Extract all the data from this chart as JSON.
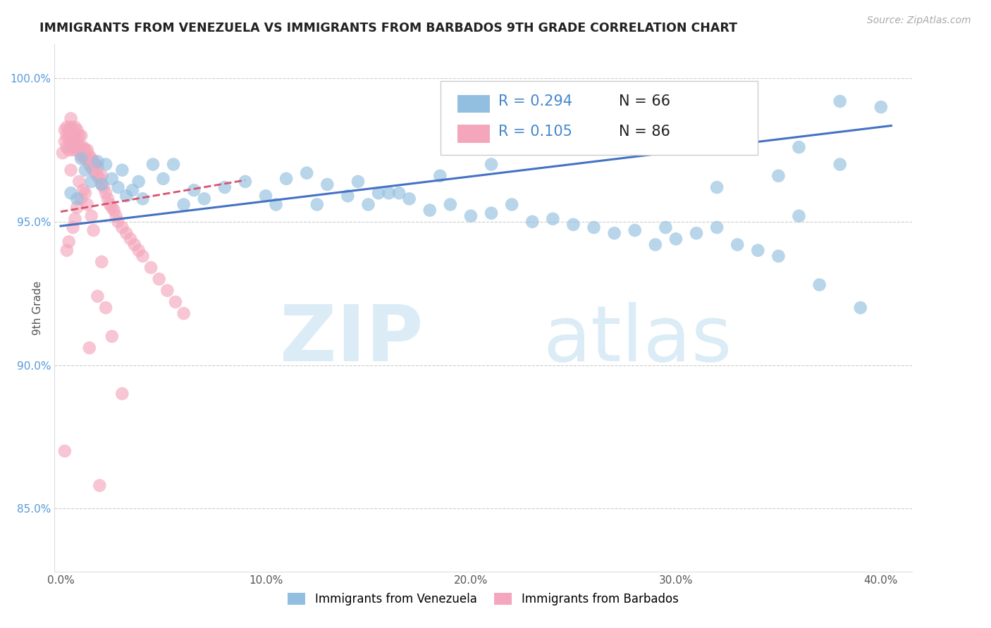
{
  "title": "IMMIGRANTS FROM VENEZUELA VS IMMIGRANTS FROM BARBADOS 9TH GRADE CORRELATION CHART",
  "source": "Source: ZipAtlas.com",
  "ylabel": "9th Grade",
  "xlim": [
    -0.003,
    0.415
  ],
  "ylim": [
    0.828,
    1.012
  ],
  "yticks": [
    0.85,
    0.9,
    0.95,
    1.0
  ],
  "ytick_labels": [
    "85.0%",
    "90.0%",
    "95.0%",
    "100.0%"
  ],
  "xticks": [
    0.0,
    0.1,
    0.2,
    0.3,
    0.4
  ],
  "xtick_labels": [
    "0.0%",
    "10.0%",
    "20.0%",
    "30.0%",
    "40.0%"
  ],
  "legend_r1": "R = 0.294",
  "legend_n1": "N = 66",
  "legend_r2": "R = 0.105",
  "legend_n2": "N = 86",
  "blue_color": "#92bfe0",
  "pink_color": "#f4a7bc",
  "blue_line_color": "#4472c4",
  "pink_line_color": "#d9526e",
  "pink_line_dash": "--",
  "watermark_zip": "ZIP",
  "watermark_atlas": "atlas",
  "blue_trend_x": [
    0.0,
    0.405
  ],
  "blue_trend_y": [
    0.9485,
    0.9835
  ],
  "pink_trend_x": [
    0.0,
    0.09
  ],
  "pink_trend_y": [
    0.9535,
    0.9645
  ],
  "blue_scatter_x": [
    0.005,
    0.008,
    0.01,
    0.012,
    0.015,
    0.018,
    0.02,
    0.022,
    0.025,
    0.028,
    0.03,
    0.032,
    0.035,
    0.038,
    0.04,
    0.045,
    0.05,
    0.055,
    0.06,
    0.065,
    0.07,
    0.08,
    0.09,
    0.1,
    0.11,
    0.12,
    0.13,
    0.14,
    0.15,
    0.16,
    0.17,
    0.18,
    0.19,
    0.2,
    0.21,
    0.22,
    0.23,
    0.24,
    0.25,
    0.26,
    0.27,
    0.28,
    0.29,
    0.3,
    0.31,
    0.32,
    0.33,
    0.34,
    0.35,
    0.36,
    0.37,
    0.38,
    0.39,
    0.4,
    0.36,
    0.38,
    0.35,
    0.32,
    0.295,
    0.21,
    0.185,
    0.165,
    0.145,
    0.155,
    0.125,
    0.105
  ],
  "blue_scatter_y": [
    0.96,
    0.958,
    0.972,
    0.968,
    0.964,
    0.971,
    0.963,
    0.97,
    0.965,
    0.962,
    0.968,
    0.959,
    0.961,
    0.964,
    0.958,
    0.97,
    0.965,
    0.97,
    0.956,
    0.961,
    0.958,
    0.962,
    0.964,
    0.959,
    0.965,
    0.967,
    0.963,
    0.959,
    0.956,
    0.96,
    0.958,
    0.954,
    0.956,
    0.952,
    0.953,
    0.956,
    0.95,
    0.951,
    0.949,
    0.948,
    0.946,
    0.947,
    0.942,
    0.944,
    0.946,
    0.948,
    0.942,
    0.94,
    0.938,
    0.952,
    0.928,
    0.992,
    0.92,
    0.99,
    0.976,
    0.97,
    0.966,
    0.962,
    0.948,
    0.97,
    0.966,
    0.96,
    0.964,
    0.96,
    0.956,
    0.956
  ],
  "pink_scatter_x": [
    0.001,
    0.002,
    0.002,
    0.003,
    0.003,
    0.003,
    0.004,
    0.004,
    0.004,
    0.005,
    0.005,
    0.005,
    0.005,
    0.006,
    0.006,
    0.006,
    0.007,
    0.007,
    0.007,
    0.008,
    0.008,
    0.008,
    0.009,
    0.009,
    0.01,
    0.01,
    0.01,
    0.011,
    0.011,
    0.012,
    0.012,
    0.013,
    0.013,
    0.014,
    0.014,
    0.015,
    0.015,
    0.016,
    0.016,
    0.017,
    0.017,
    0.018,
    0.018,
    0.019,
    0.02,
    0.02,
    0.021,
    0.022,
    0.023,
    0.024,
    0.025,
    0.026,
    0.027,
    0.028,
    0.03,
    0.032,
    0.034,
    0.036,
    0.038,
    0.04,
    0.044,
    0.048,
    0.052,
    0.056,
    0.06,
    0.012,
    0.008,
    0.01,
    0.015,
    0.006,
    0.007,
    0.016,
    0.004,
    0.003,
    0.02,
    0.018,
    0.022,
    0.025,
    0.014,
    0.03,
    0.005,
    0.009,
    0.011,
    0.013,
    0.002,
    0.019
  ],
  "pink_scatter_y": [
    0.974,
    0.978,
    0.982,
    0.976,
    0.98,
    0.983,
    0.975,
    0.979,
    0.982,
    0.976,
    0.98,
    0.983,
    0.986,
    0.975,
    0.979,
    0.982,
    0.976,
    0.98,
    0.983,
    0.975,
    0.979,
    0.982,
    0.976,
    0.98,
    0.973,
    0.976,
    0.98,
    0.973,
    0.976,
    0.972,
    0.975,
    0.972,
    0.975,
    0.97,
    0.973,
    0.969,
    0.972,
    0.968,
    0.971,
    0.967,
    0.97,
    0.966,
    0.969,
    0.965,
    0.963,
    0.966,
    0.962,
    0.96,
    0.958,
    0.956,
    0.955,
    0.954,
    0.952,
    0.95,
    0.948,
    0.946,
    0.944,
    0.942,
    0.94,
    0.938,
    0.934,
    0.93,
    0.926,
    0.922,
    0.918,
    0.96,
    0.955,
    0.958,
    0.952,
    0.948,
    0.951,
    0.947,
    0.943,
    0.94,
    0.936,
    0.924,
    0.92,
    0.91,
    0.906,
    0.89,
    0.968,
    0.964,
    0.961,
    0.956,
    0.87,
    0.858
  ]
}
